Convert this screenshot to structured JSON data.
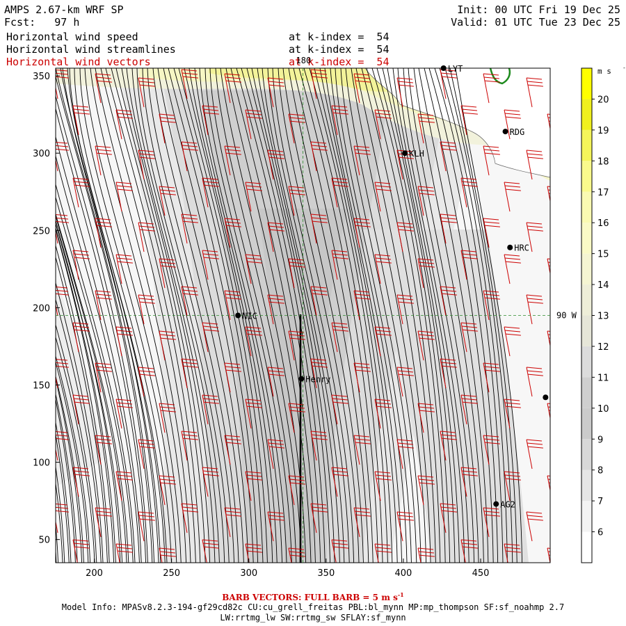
{
  "header": {
    "title": "AMPS 2.67-km WRF SP",
    "forecast_label": "Fcst:",
    "forecast_value": "97 h",
    "init": "Init: 00 UTC Fri 19 Dec 25",
    "valid": "Valid: 01 UTC Tue 23 Dec 25",
    "fields": [
      {
        "name": "Horizontal wind speed",
        "level": "at k-index =  54"
      },
      {
        "name": "Horizontal wind streamlines",
        "level": "at k-index =  54"
      },
      {
        "name": "Horizontal wind vectors",
        "level": "at k-index =  54"
      }
    ]
  },
  "colors": {
    "vector_red": "#cc0000",
    "guide_green": "#2a8a2a",
    "coast_green": "#1d8a1d",
    "text_black": "#000000"
  },
  "chart_data": {
    "type": "heatmap",
    "title": "Horizontal wind speed / streamlines / vectors",
    "xlabel": "",
    "ylabel": "",
    "xlim": [
      175,
      495
    ],
    "ylim": [
      35,
      355
    ],
    "x_ticks": [
      200,
      250,
      300,
      350,
      400,
      450
    ],
    "y_ticks": [
      50,
      100,
      150,
      200,
      250,
      300,
      350
    ],
    "grid_lines": [
      {
        "label": "180",
        "orientation": "vertical",
        "x": 335
      },
      {
        "label": "90 W",
        "orientation": "horizontal",
        "y": 195
      }
    ],
    "stations": [
      {
        "name": "NIC",
        "x": 293,
        "y": 195
      },
      {
        "name": "Henry",
        "x": 334,
        "y": 154
      },
      {
        "name": "KLH",
        "x": 401,
        "y": 300
      },
      {
        "name": "RDG",
        "x": 466,
        "y": 314
      },
      {
        "name": "HRC",
        "x": 469,
        "y": 239
      },
      {
        "name": "AG2",
        "x": 460,
        "y": 73
      },
      {
        "name": "LYT",
        "x": 426,
        "y": 355
      },
      {
        "name": "",
        "x": 492,
        "y": 142
      }
    ],
    "colorbar": {
      "unit": "m s",
      "unit_exp": "-1",
      "min": 5,
      "max": 21,
      "labels": [
        6,
        7,
        8,
        9,
        10,
        11,
        12,
        13,
        14,
        15,
        16,
        17,
        18,
        19,
        20
      ],
      "colors": [
        "#ffffff",
        "#f3f3f3",
        "#e6e6e6",
        "#d8d8d8",
        "#cbcbcb",
        "#cfcfcf",
        "#dcdcdc",
        "#e6e6d8",
        "#eeeed8",
        "#f5f5d2",
        "#fafac6",
        "#fafab2",
        "#fafa8c",
        "#f5f55a",
        "#f0f01e",
        "#ffff00"
      ]
    },
    "barb_vectors": {
      "full_barb_ms": 5
    }
  },
  "footer": {
    "barb_note": "BARB VECTORS: FULL BARB = 5 m s",
    "barb_exp": "-1",
    "model_info": "Model Info: MPASv8.2.3-194-gf29cd82c CU:cu_grell_freitas PBL:bl_mynn MP:mp_thompson SF:sf_noahmp 2.7",
    "model_info2": "LW:rrtmg_lw SW:rrtmg_sw SFLAY:sf_mynn"
  }
}
